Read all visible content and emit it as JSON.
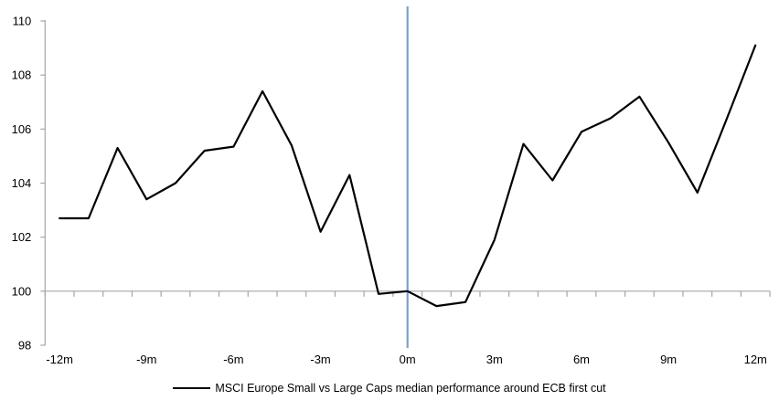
{
  "chart_data": {
    "type": "line",
    "title": "",
    "xlabel": "",
    "ylabel": "",
    "grid": false,
    "legend_position": "bottom",
    "x_months": [
      -12,
      -11,
      -10,
      -9,
      -8,
      -7,
      -6,
      -5,
      -4,
      -3,
      -2,
      -1,
      0,
      1,
      2,
      3,
      4,
      5,
      6,
      7,
      8,
      9,
      10,
      11,
      12
    ],
    "series": [
      {
        "name": "MSCI Europe Small vs Large Caps median performance around ECB first cut",
        "color": "#000000",
        "values": [
          102.7,
          102.7,
          105.3,
          103.4,
          104.0,
          105.2,
          105.35,
          107.4,
          105.4,
          102.2,
          104.3,
          99.9,
          100.0,
          99.45,
          99.6,
          101.9,
          105.45,
          104.1,
          105.9,
          106.4,
          107.2,
          105.5,
          103.65,
          106.35,
          109.1
        ]
      }
    ],
    "y_ticks": [
      98,
      100,
      102,
      104,
      106,
      108,
      110
    ],
    "ylim": [
      98,
      110
    ],
    "x_tick_label_months": [
      -12,
      -9,
      -6,
      -3,
      0,
      3,
      6,
      9,
      12
    ],
    "x_tick_labels": [
      "-12m",
      "-9m",
      "-6m",
      "-3m",
      "0m",
      "3m",
      "6m",
      "9m",
      "12m"
    ],
    "baseline_value": 100,
    "event_line": {
      "x_month": 0,
      "color": "#7ba0cd"
    },
    "axis_color": "#a6a6a6"
  },
  "legend": {
    "label": "MSCI Europe Small vs Large Caps median performance around ECB first cut"
  }
}
